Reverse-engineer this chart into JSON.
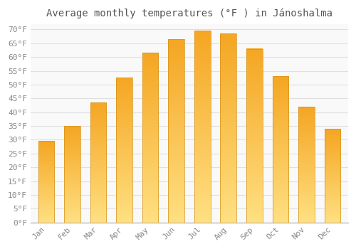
{
  "title": "Average monthly temperatures (°F ) in Jánoshalma",
  "months": [
    "Jan",
    "Feb",
    "Mar",
    "Apr",
    "May",
    "Jun",
    "Jul",
    "Aug",
    "Sep",
    "Oct",
    "Nov",
    "Dec"
  ],
  "values": [
    29.5,
    35.0,
    43.5,
    52.5,
    61.5,
    66.5,
    69.5,
    68.5,
    63.0,
    53.0,
    42.0,
    34.0
  ],
  "bar_color_top": "#F5A623",
  "bar_color_bottom": "#FFE082",
  "bar_border_color": "#D4921A",
  "background_color": "#ffffff",
  "plot_bg_color": "#f9f9f9",
  "grid_color": "#e0e0e0",
  "ylim": [
    0,
    72
  ],
  "yticks": [
    0,
    5,
    10,
    15,
    20,
    25,
    30,
    35,
    40,
    45,
    50,
    55,
    60,
    65,
    70
  ],
  "title_fontsize": 10,
  "tick_fontsize": 8,
  "tick_color": "#888888",
  "title_color": "#555555"
}
